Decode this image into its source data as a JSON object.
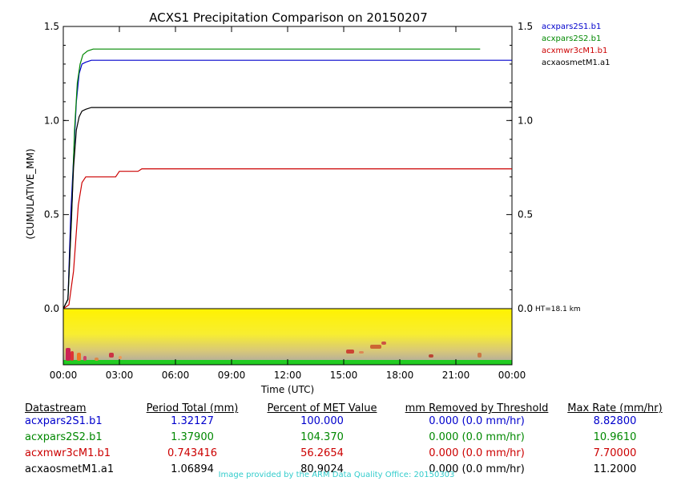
{
  "chart_data": {
    "type": "line",
    "title": "ACXS1 Precipitation Comparison on 20150207",
    "xlabel": "Time (UTC)",
    "ylabel": "(CUMULATIVE_MM)",
    "xlim": [
      0,
      24
    ],
    "ylim": [
      0,
      1.5
    ],
    "x_ticks": [
      "00:00",
      "03:00",
      "06:00",
      "09:00",
      "12:00",
      "15:00",
      "18:00",
      "21:00",
      "00:00"
    ],
    "y_ticks": [
      "0.0",
      "0.5",
      "1.0",
      "1.5"
    ],
    "legend_position": "top-right, outside plot",
    "height_label": "HT=18.1 km",
    "series": [
      {
        "name": "acxpars2S1.b1",
        "color": "#0000cc",
        "x": [
          0,
          0.25,
          0.4,
          0.55,
          0.7,
          0.85,
          1.0,
          1.2,
          1.5,
          2,
          24
        ],
        "y": [
          0,
          0.05,
          0.5,
          0.8,
          1.1,
          1.25,
          1.3,
          1.31,
          1.32,
          1.32,
          1.32
        ]
      },
      {
        "name": "acxpars2S2.b1",
        "color": "#008800",
        "x": [
          0,
          0.25,
          0.45,
          0.6,
          0.75,
          0.9,
          1.05,
          1.3,
          1.6,
          2.2,
          22.3
        ],
        "y": [
          0,
          0.05,
          0.5,
          0.95,
          1.2,
          1.3,
          1.35,
          1.37,
          1.38,
          1.38,
          1.38
        ]
      },
      {
        "name": "acxmwr3cM1.b1",
        "color": "#cc0000",
        "x": [
          0,
          0.3,
          0.55,
          0.8,
          1.0,
          1.2,
          1.6,
          2.8,
          3.0,
          4.0,
          4.2,
          24
        ],
        "y": [
          0,
          0.02,
          0.2,
          0.55,
          0.67,
          0.7,
          0.7,
          0.7,
          0.73,
          0.73,
          0.743,
          0.743
        ]
      },
      {
        "name": "acxaosmetM1.a1",
        "color": "#000000",
        "x": [
          0,
          0.25,
          0.4,
          0.55,
          0.7,
          0.85,
          1.0,
          1.2,
          1.5,
          24
        ],
        "y": [
          0,
          0.05,
          0.4,
          0.75,
          0.95,
          1.02,
          1.05,
          1.06,
          1.069,
          1.069
        ]
      }
    ]
  },
  "table": {
    "headers": [
      "Datastream",
      "Period Total (mm)",
      "Percent of MET Value",
      "mm Removed by Threshold",
      "Max Rate (mm/hr)"
    ],
    "rows": [
      {
        "name": "acxpars2S1.b1",
        "total": "1.32127",
        "percent": "100.000",
        "removed": "0.000 (0.0 mm/hr)",
        "max_rate": "8.82800",
        "color": "#0000cc"
      },
      {
        "name": "acxpars2S2.b1",
        "total": "1.37900",
        "percent": "104.370",
        "removed": "0.000 (0.0 mm/hr)",
        "max_rate": "10.9610",
        "color": "#008800"
      },
      {
        "name": "acxmwr3cM1.b1",
        "total": "0.743416",
        "percent": "56.2654",
        "removed": "0.000 (0.0 mm/hr)",
        "max_rate": "7.70000",
        "color": "#cc0000"
      },
      {
        "name": "acxaosmetM1.a1",
        "total": "1.06894",
        "percent": "80.9024",
        "removed": "0.000 (0.0 mm/hr)",
        "max_rate": "11.2000",
        "color": "#000000"
      }
    ]
  },
  "credit": "Image provided by the ARM Data Quality Office: 20150303"
}
